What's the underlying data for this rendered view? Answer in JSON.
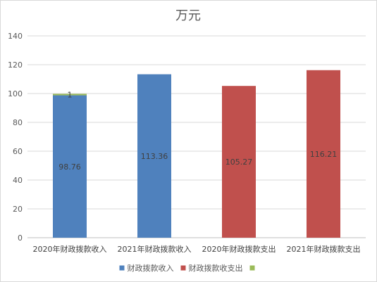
{
  "chart_data": {
    "type": "bar",
    "stacked": true,
    "title": "万元",
    "xlabel": "",
    "ylabel": "",
    "ylim": [
      0,
      140
    ],
    "yticks": [
      0,
      20,
      40,
      60,
      80,
      100,
      120,
      140
    ],
    "grid": true,
    "legend_position": "bottom",
    "categories": [
      "2020年财政拨款收入",
      "2021年财政拨款收入",
      "2020年财政拨款支出",
      "2021年财政拨款支出"
    ],
    "series": [
      {
        "name": "财政拨款收入",
        "color": "#4f81bd",
        "values": [
          98.76,
          113.36,
          null,
          null
        ],
        "labels": [
          "98.76",
          "113.36",
          null,
          null
        ]
      },
      {
        "name": "财政拨款收支出",
        "color": "#c0504d",
        "values": [
          null,
          null,
          105.27,
          116.21
        ],
        "labels": [
          null,
          null,
          "105.27",
          "116.21"
        ]
      },
      {
        "name": "",
        "color": "#9bbb59",
        "values": [
          1,
          null,
          null,
          null
        ],
        "labels": [
          "1",
          null,
          null,
          null
        ]
      }
    ]
  }
}
